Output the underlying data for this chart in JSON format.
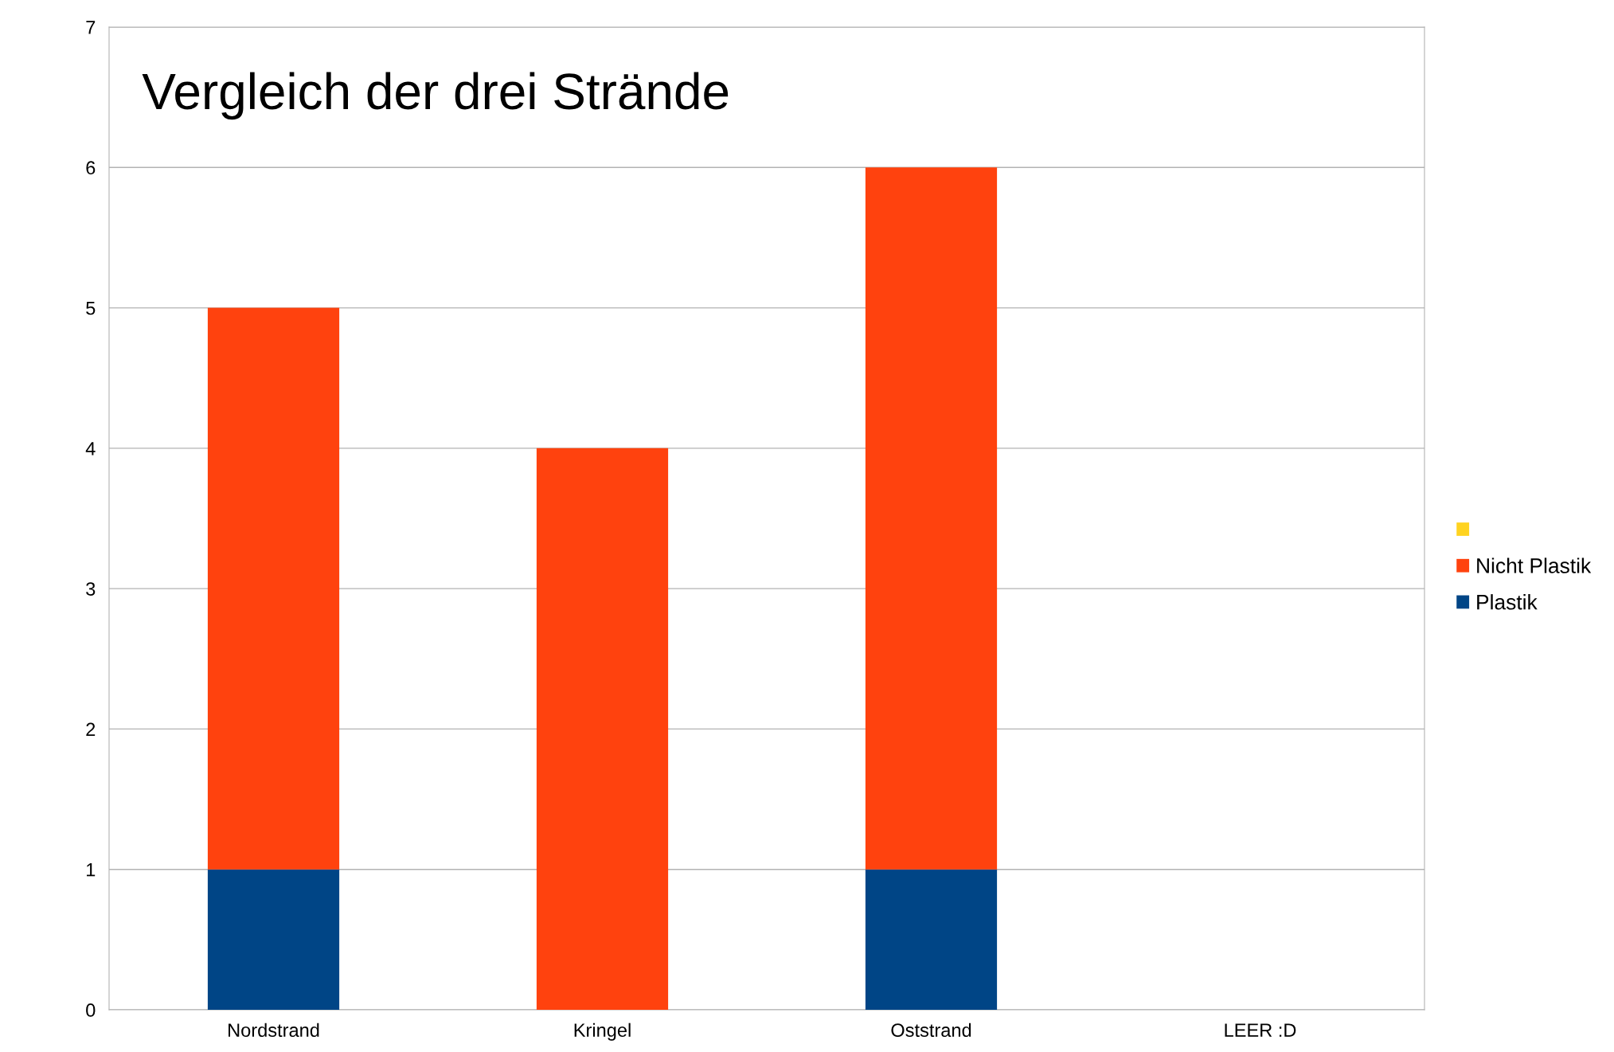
{
  "chart_data": {
    "type": "bar",
    "title": "Vergleich der drei Strände",
    "stacked": true,
    "categories": [
      "Nordstrand",
      "Kringel",
      "Oststrand",
      "LEER :D"
    ],
    "series": [
      {
        "name": "Plastik",
        "color": "#004586",
        "values": [
          1,
          0,
          1,
          null
        ]
      },
      {
        "name": "Nicht Plastik",
        "color": "#ff420e",
        "values": [
          4,
          4,
          5,
          null
        ]
      },
      {
        "color": "#ffd320",
        "values": [
          null,
          null,
          null,
          null
        ]
      }
    ],
    "ylim": [
      0,
      7
    ],
    "yticks": [
      0,
      1,
      2,
      3,
      4,
      5,
      6,
      7
    ],
    "grid": "y",
    "legend": "right"
  }
}
